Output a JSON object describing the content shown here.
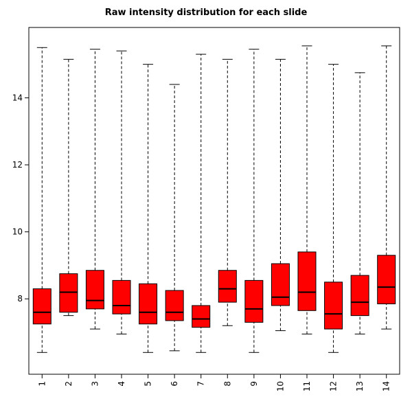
{
  "chart_data": {
    "type": "boxplot",
    "title": "Raw intensity distribution for each slide",
    "xlabel": "",
    "ylabel": "",
    "categories": [
      "1",
      "2",
      "3",
      "4",
      "5",
      "6",
      "7",
      "8",
      "9",
      "10",
      "11",
      "12",
      "13",
      "14"
    ],
    "stats": [
      {
        "low": 6.4,
        "q1": 7.25,
        "median": 7.6,
        "q3": 8.3,
        "high": 15.5
      },
      {
        "low": 7.5,
        "q1": 7.6,
        "median": 8.2,
        "q3": 8.75,
        "high": 15.15
      },
      {
        "low": 7.1,
        "q1": 7.7,
        "median": 7.95,
        "q3": 8.85,
        "high": 15.45
      },
      {
        "low": 6.95,
        "q1": 7.55,
        "median": 7.8,
        "q3": 8.55,
        "high": 15.4
      },
      {
        "low": 6.4,
        "q1": 7.25,
        "median": 7.6,
        "q3": 8.45,
        "high": 15.0
      },
      {
        "low": 6.45,
        "q1": 7.35,
        "median": 7.6,
        "q3": 8.25,
        "high": 14.4
      },
      {
        "low": 6.4,
        "q1": 7.15,
        "median": 7.4,
        "q3": 7.8,
        "high": 15.3
      },
      {
        "low": 7.2,
        "q1": 7.9,
        "median": 8.3,
        "q3": 8.85,
        "high": 15.15
      },
      {
        "low": 6.4,
        "q1": 7.3,
        "median": 7.7,
        "q3": 8.55,
        "high": 15.45
      },
      {
        "low": 7.05,
        "q1": 7.8,
        "median": 8.05,
        "q3": 9.05,
        "high": 15.15
      },
      {
        "low": 6.95,
        "q1": 7.65,
        "median": 8.2,
        "q3": 9.4,
        "high": 15.55
      },
      {
        "low": 6.4,
        "q1": 7.1,
        "median": 7.55,
        "q3": 8.5,
        "high": 15.0
      },
      {
        "low": 6.95,
        "q1": 7.5,
        "median": 7.9,
        "q3": 8.7,
        "high": 14.75
      },
      {
        "low": 7.1,
        "q1": 7.85,
        "median": 8.35,
        "q3": 9.3,
        "high": 15.55
      }
    ],
    "ylim": [
      5.75,
      16.1
    ],
    "yticks": [
      8,
      10,
      12,
      14
    ],
    "grid": false,
    "legend": false,
    "box_fill_color": "#FF0000",
    "line_color": "#000000",
    "background_color": "#FFFFFF",
    "whisker_style": "dashed"
  }
}
